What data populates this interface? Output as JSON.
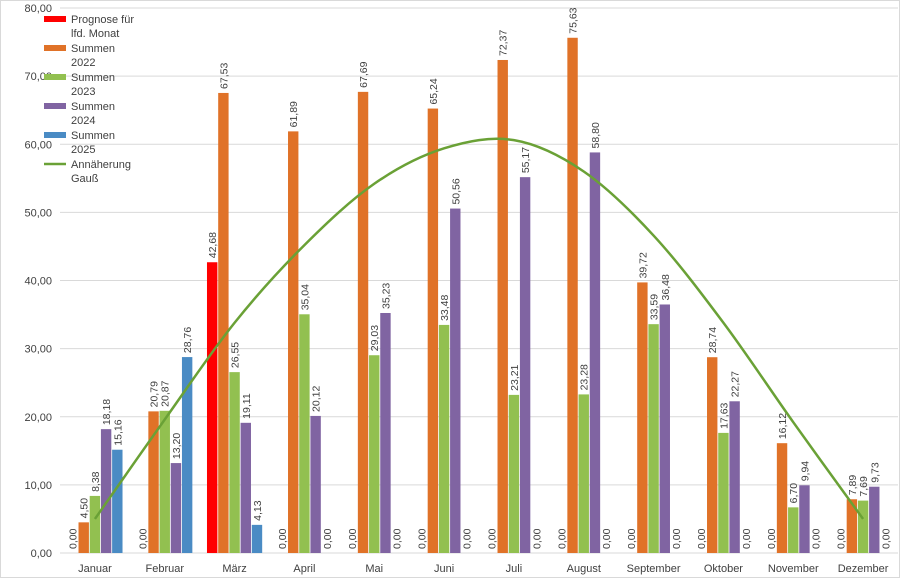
{
  "chart_data": {
    "type": "bar",
    "title": "",
    "xlabel": "",
    "ylabel": "",
    "ylim": [
      0,
      80
    ],
    "ytick_step": 10,
    "ytick_labels": [
      "0,00",
      "10,00",
      "20,00",
      "30,00",
      "40,00",
      "50,00",
      "60,00",
      "70,00",
      "80,00"
    ],
    "grid": true,
    "legend_position": "top-left",
    "categories": [
      "Januar",
      "Februar",
      "März",
      "April",
      "Mai",
      "Juni",
      "Juli",
      "August",
      "September",
      "Oktober",
      "November",
      "Dezember"
    ],
    "series": [
      {
        "name": "Prognose für lfd. Monat",
        "color": "#ff0000",
        "values": [
          0,
          0,
          42.68,
          0,
          0,
          0,
          0,
          0,
          0,
          0,
          0,
          0
        ],
        "labels": [
          "0,00",
          "0,00",
          "42,68",
          "0,00",
          "0,00",
          "0,00",
          "0,00",
          "0,00",
          "0,00",
          "0,00",
          "0,00",
          "0,00"
        ]
      },
      {
        "name": "Summen 2022",
        "color": "#e07228",
        "values": [
          4.5,
          20.79,
          67.53,
          61.89,
          67.69,
          65.24,
          72.37,
          75.63,
          39.72,
          28.74,
          16.12,
          7.89
        ],
        "labels": [
          "4,50",
          "20,79",
          "67,53",
          "61,89",
          "67,69",
          "65,24",
          "72,37",
          "75,63",
          "39,72",
          "28,74",
          "16,12",
          "7,89"
        ]
      },
      {
        "name": "Summen 2023",
        "color": "#92c050",
        "values": [
          8.38,
          20.87,
          26.55,
          35.04,
          29.03,
          33.48,
          23.21,
          23.28,
          33.59,
          17.63,
          6.7,
          7.69
        ],
        "labels": [
          "8,38",
          "20,87",
          "26,55",
          "35,04",
          "29,03",
          "33,48",
          "23,21",
          "23,28",
          "33,59",
          "17,63",
          "6,70",
          "7,69"
        ]
      },
      {
        "name": "Summen 2024",
        "color": "#8064a2",
        "values": [
          18.18,
          13.2,
          19.11,
          20.12,
          35.23,
          50.56,
          55.17,
          58.8,
          36.48,
          22.27,
          9.94,
          9.73
        ],
        "labels": [
          "18,18",
          "13,20",
          "19,11",
          "20,12",
          "35,23",
          "50,56",
          "55,17",
          "58,80",
          "36,48",
          "22,27",
          "9,94",
          "9,73"
        ]
      },
      {
        "name": "Summen 2025",
        "color": "#4a8bc4",
        "values": [
          15.16,
          28.76,
          4.13,
          0,
          0,
          0,
          0,
          0,
          0,
          0,
          0,
          0
        ],
        "labels": [
          "15,16",
          "28,76",
          "4,13",
          "0,00",
          "0,00",
          "0,00",
          "0,00",
          "0,00",
          "0,00",
          "0,00",
          "0,00",
          "0,00"
        ]
      }
    ],
    "trend": {
      "name": "Annäherung Gauß",
      "color": "#6aa136",
      "values": [
        5.0,
        19.6,
        33.8,
        45.2,
        54.2,
        59.4,
        60.6,
        56.0,
        46.6,
        33.8,
        19.2,
        5.0
      ]
    }
  }
}
